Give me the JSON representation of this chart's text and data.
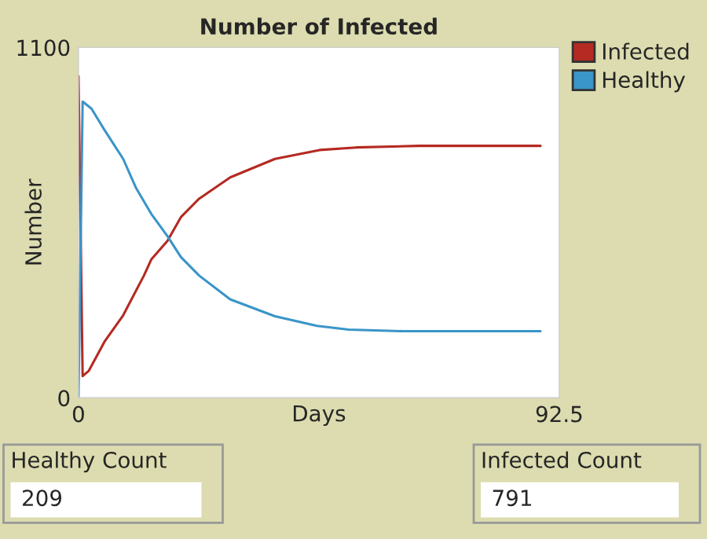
{
  "chart_data": {
    "type": "line",
    "title": "Number of Infected",
    "xlabel": "Days",
    "ylabel": "Number",
    "xlim": [
      0,
      92.5
    ],
    "xticks": [
      0,
      92.5
    ],
    "ylim": [
      0,
      1100
    ],
    "yticks": [
      0,
      1100
    ],
    "grid": false,
    "legend": "right",
    "marker": "none",
    "line_style": "solid",
    "series": [
      {
        "name": "Infected",
        "color": "#b52a22",
        "x": [
          0,
          0.8,
          2,
          5,
          8.6,
          12.6,
          14,
          17.1,
          19.7,
          23.2,
          29.2,
          37.8,
          46.4,
          53.4,
          65.5,
          88.9
        ],
        "values": [
          1010,
          68,
          85,
          176,
          259,
          384,
          434,
          492,
          567,
          625,
          692,
          750,
          778,
          786,
          791,
          791
        ]
      },
      {
        "name": "Healthy",
        "color": "#3a95c8",
        "x": [
          0,
          0.8,
          2.5,
          5,
          8.6,
          11.1,
          14.1,
          17.1,
          19.7,
          23.2,
          29.2,
          37.8,
          45.9,
          52,
          62.5,
          88.9
        ],
        "values": [
          0,
          930,
          908,
          841,
          750,
          658,
          575,
          508,
          442,
          384,
          309,
          256,
          226,
          214,
          209,
          209
        ]
      }
    ],
    "annotations": [
      "Healthy Count",
      "209",
      "Infected Count",
      "791"
    ]
  }
}
